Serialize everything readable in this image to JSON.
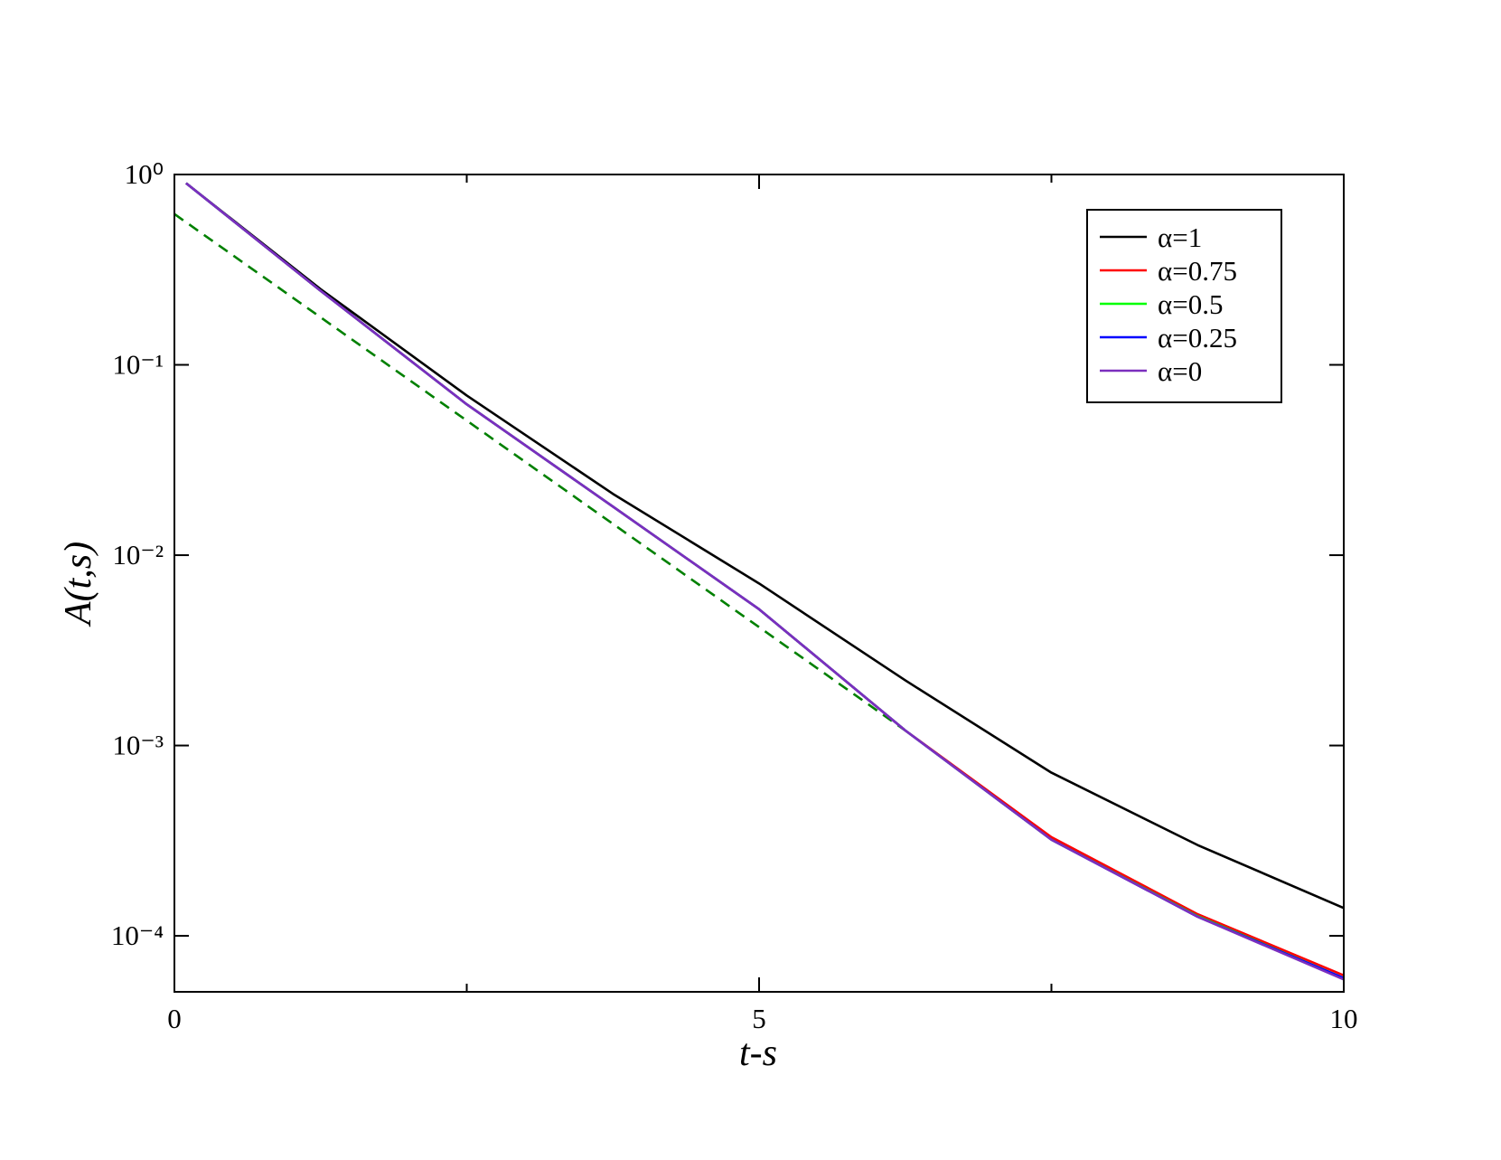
{
  "chart_data": {
    "type": "line",
    "x_label": "t-s",
    "y_label": "A(t,s)",
    "xlim": [
      0,
      10
    ],
    "xticks": [
      0,
      5,
      10
    ],
    "xminor_ticks": [
      2.5,
      7.5
    ],
    "ylim": [
      5.08e-05,
      1
    ],
    "log_y": true,
    "yticks": [
      {
        "value": 1,
        "label": "10⁰"
      },
      {
        "value": 0.1,
        "label": "10⁻¹"
      },
      {
        "value": 0.01,
        "label": "10⁻²"
      },
      {
        "value": 0.001,
        "label": "10⁻³"
      },
      {
        "value": 0.0001,
        "label": "10⁻⁴"
      }
    ],
    "legend_position": "upper right",
    "x": [
      0.1,
      1.25,
      2.5,
      3.75,
      5,
      6.25,
      7.5,
      8.75,
      10
    ],
    "series": [
      {
        "name": "α=1",
        "color": "#000000",
        "values": [
          0.9,
          0.25,
          0.069,
          0.021,
          0.0071,
          0.0022,
          0.00072,
          0.0003,
          0.00014
        ]
      },
      {
        "name": "α=0.75",
        "color": "#ff0000",
        "values": [
          0.9,
          0.245,
          0.062,
          0.018,
          0.0052,
          0.0012,
          0.00033,
          0.00013,
          6.2e-05
        ]
      },
      {
        "name": "α=0.5",
        "color": "#00ff00",
        "values": [
          0.9,
          0.245,
          0.062,
          0.018,
          0.0052,
          0.0012,
          0.00032,
          0.000127,
          6e-05
        ]
      },
      {
        "name": "α=0.25",
        "color": "#0000ff",
        "values": [
          0.9,
          0.245,
          0.062,
          0.018,
          0.0052,
          0.0012,
          0.00032,
          0.000126,
          6e-05
        ]
      },
      {
        "name": "α=0",
        "color": "#7b2fbe",
        "values": [
          0.9,
          0.245,
          0.062,
          0.018,
          0.0052,
          0.0012,
          0.00032,
          0.000126,
          5.9e-05
        ]
      }
    ],
    "reference_line": {
      "color": "#008000",
      "dashed": true,
      "x": [
        0,
        6.25
      ],
      "values": [
        0.62,
        0.0012
      ]
    }
  }
}
